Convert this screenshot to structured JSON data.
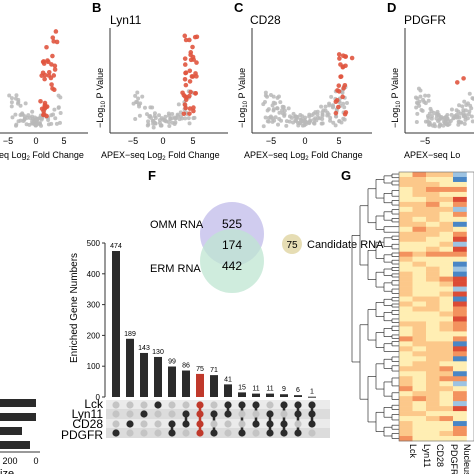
{
  "panels": {
    "B": {
      "letter": "B",
      "title": "Lyn11"
    },
    "C": {
      "letter": "C",
      "title": "CD28"
    },
    "D": {
      "letter": "D",
      "title": "PDGFR"
    },
    "F": {
      "letter": "F"
    },
    "G": {
      "letter": "G"
    }
  },
  "volcano_axes": {
    "ylabel_prefix": "−Log",
    "ylabel_sub": "10",
    "ylabel_suffix": " P Value",
    "xlabel_prefix": "APEX−seq Log",
    "xlabel_sub": "2",
    "xlabel_suffix": " Fold Change",
    "xlabel_partial": "eq Log",
    "xlabel_partial_sub": "2",
    "xlabel_partial_suffix": " Fold Change",
    "xlabel_d_partial": "APEX−seq Lo",
    "ticks_full": [
      "−5",
      "0",
      "5"
    ],
    "ticks_a": [
      "−5",
      "0",
      "5"
    ],
    "ticks_d": [
      "−5"
    ]
  },
  "venn": {
    "omm_label": "OMM RNA",
    "erm_label": "ERM RNA",
    "omm_only": "525",
    "overlap": "174",
    "erm_only": "442",
    "candidate_value": "75",
    "candidate_label": "Candidate RNA"
  },
  "upset_sets": [
    "Lck",
    "Lyn11",
    "CD28",
    "PDGFR"
  ],
  "set_size_axis": {
    "label": "ize",
    "ticks": [
      "200",
      "0"
    ]
  },
  "heatmap_cols": [
    "Lck",
    "Lyn11",
    "CD28",
    "PDGFR",
    "Nucleus"
  ],
  "colors": {
    "bar": "#2b2b2b",
    "highlight": "#c0392b",
    "omm_circle": "#c8c3ec",
    "erm_circle": "#bfe6d2",
    "candidate_circle": "#e6ddb4",
    "volcano_grey": "#b9b9b9",
    "volcano_red": "#e0553f"
  },
  "chart_data": {
    "type": "bar",
    "title": "",
    "ylabel": "Enriched Gene Numbers",
    "ylim": [
      0,
      500
    ],
    "yticks": [
      0,
      100,
      200,
      300,
      400,
      500
    ],
    "values": [
      474,
      189,
      143,
      130,
      99,
      86,
      75,
      71,
      41,
      15,
      11,
      11,
      9,
      6,
      1
    ],
    "highlight_index": 6,
    "memberships": [
      [
        3
      ],
      [
        2
      ],
      [
        1
      ],
      [
        0
      ],
      [
        2,
        3
      ],
      [
        1,
        2
      ],
      [
        0,
        1,
        2,
        3
      ],
      [
        1,
        3
      ],
      [
        0,
        1
      ],
      [
        0,
        3
      ],
      [
        0,
        2
      ],
      [
        1,
        2,
        3
      ],
      [
        0,
        2,
        3
      ],
      [
        0,
        1,
        3
      ],
      [
        0,
        1,
        2
      ]
    ]
  }
}
